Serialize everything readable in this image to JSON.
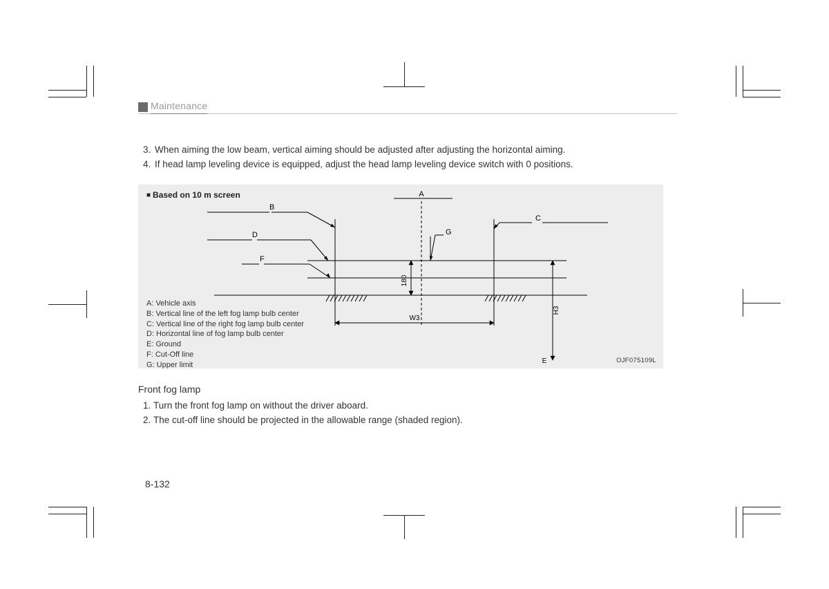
{
  "header": {
    "section_title": "Maintenance"
  },
  "upper_list_start": 3,
  "upper_list": [
    "When aiming the low beam, vertical aiming should be adjusted after adjusting the horizontal aiming.",
    "If head lamp leveling device is equipped, adjust the head lamp leveling device switch with 0 positions."
  ],
  "figure": {
    "title": "Based on 10 m screen",
    "id": "OJF075109L",
    "bg": "#ededed",
    "line_color": "#000000",
    "labels": {
      "A": "A",
      "B": "B",
      "C": "C",
      "D": "D",
      "E": "E",
      "F": "F",
      "G": "G"
    },
    "dims": {
      "h180": "180",
      "W3": "W3",
      "H3": "H3"
    },
    "legend": [
      "A: Vehicle axis",
      "B: Vertical line of the left fog lamp bulb center",
      "C: Vertical line of the right fog lamp bulb center",
      "D: Horizontal line of fog lamp bulb center",
      "E: Ground",
      "F: Cut-Off line",
      "G: Upper limit"
    ],
    "geom": {
      "axisX": 410,
      "leftV": 285,
      "rightV": 515,
      "hD": 110,
      "hF": 135,
      "ground": 160,
      "gLimit": 70,
      "leftEdge": 100,
      "rightEdge": 680,
      "gTop": 75,
      "h3X": 600,
      "h3Top": 110,
      "w3Left": 285,
      "w3Right": 515,
      "w3Y": 200
    }
  },
  "subheading": "Front fog lamp",
  "lower_list": [
    "Turn the front fog lamp on without the driver aboard.",
    "The cut-off line should be projected in the allowable range (shaded region)."
  ],
  "folio": "8-132"
}
